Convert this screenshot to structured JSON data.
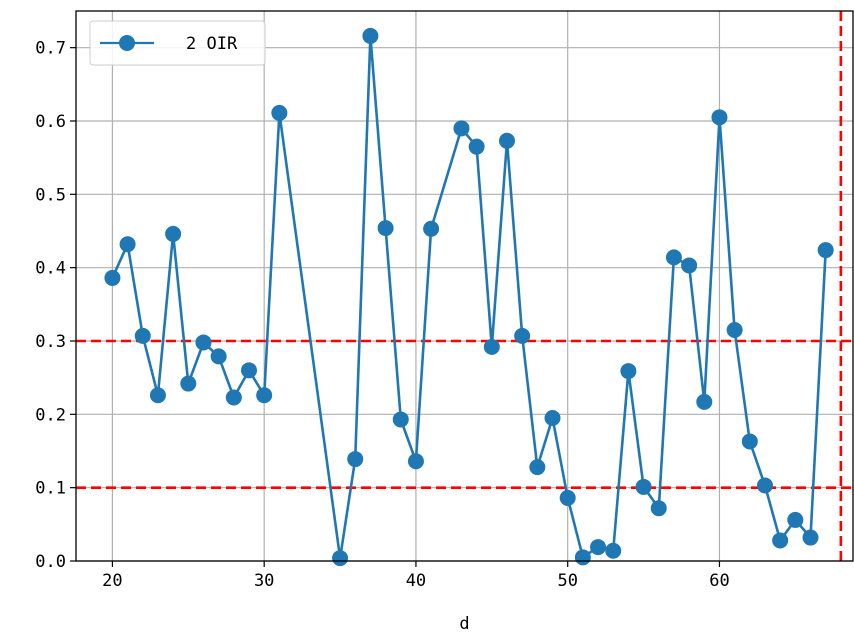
{
  "chart_data": {
    "type": "line",
    "xlabel": "d",
    "ylabel": "",
    "xlim": [
      17.6,
      68.8
    ],
    "ylim": [
      0.0,
      0.75
    ],
    "xticks": [
      20,
      30,
      40,
      50,
      60
    ],
    "yticks": [
      0.0,
      0.1,
      0.2,
      0.3,
      0.4,
      0.5,
      0.6,
      0.7
    ],
    "ytick_labels": [
      "0.0",
      "0.1",
      "0.2",
      "0.3",
      "0.4",
      "0.5",
      "0.6",
      "0.7"
    ],
    "grid": true,
    "legend": {
      "position": "upper-left"
    },
    "series": [
      {
        "name": "2 OIR",
        "color": "#1f77b4",
        "x": [
          20,
          21,
          22,
          23,
          24,
          25,
          26,
          27,
          28,
          29,
          30,
          31,
          35,
          36,
          37,
          38,
          39,
          40,
          41,
          43,
          44,
          45,
          46,
          47,
          48,
          49,
          50,
          51,
          52,
          53,
          54,
          55,
          56,
          57,
          58,
          59,
          60,
          61,
          62,
          63,
          64,
          65,
          66,
          67
        ],
        "y": [
          0.386,
          0.432,
          0.307,
          0.226,
          0.446,
          0.242,
          0.298,
          0.279,
          0.223,
          0.26,
          0.226,
          0.611,
          0.004,
          0.139,
          0.716,
          0.454,
          0.193,
          0.136,
          0.453,
          0.59,
          0.565,
          0.292,
          0.573,
          0.307,
          0.128,
          0.195,
          0.086,
          0.005,
          0.019,
          0.014,
          0.259,
          0.101,
          0.072,
          0.414,
          0.403,
          0.217,
          0.605,
          0.315,
          0.163,
          0.103,
          0.028,
          0.056,
          0.032,
          0.424
        ]
      }
    ],
    "reference_lines": {
      "color": "#ff0000",
      "horizontal": [
        0.1,
        0.3
      ],
      "vertical": [
        68
      ]
    }
  }
}
